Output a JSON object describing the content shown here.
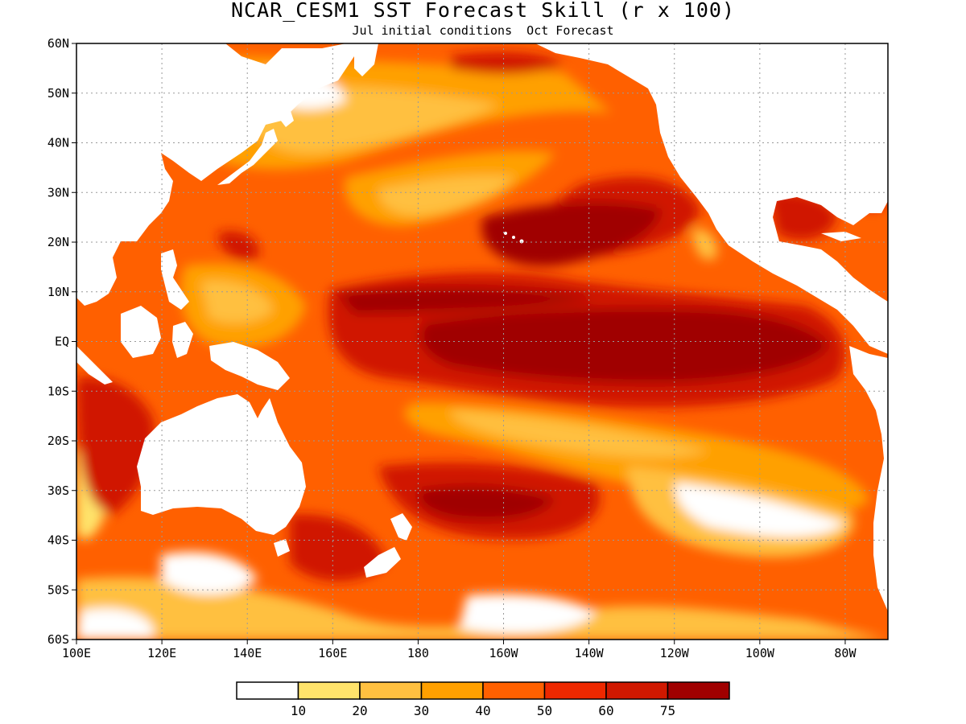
{
  "title": "NCAR_CESM1 SST Forecast Skill (r x 100)",
  "subtitle": "Jul initial conditions  Oct Forecast",
  "lat_labels": [
    "60N",
    "50N",
    "40N",
    "30N",
    "20N",
    "10N",
    "EQ",
    "10S",
    "20S",
    "30S",
    "40S",
    "50S",
    "60S"
  ],
  "lon_labels": [
    "100E",
    "120E",
    "140E",
    "160E",
    "180",
    "160W",
    "140W",
    "120W",
    "100W",
    "80W"
  ],
  "colorbar": {
    "colors": [
      "#ffffff",
      "#ffe36b",
      "#ffc040",
      "#ffa000",
      "#ff6000",
      "#ee2800",
      "#d01800",
      "#a00000"
    ],
    "labels": [
      "10",
      "20",
      "30",
      "40",
      "50",
      "60",
      "75"
    ]
  },
  "map_colors": {
    "land": "#ffffff",
    "coast": "#000000",
    "frame": "#000000",
    "grid": "#9a9a9a"
  }
}
